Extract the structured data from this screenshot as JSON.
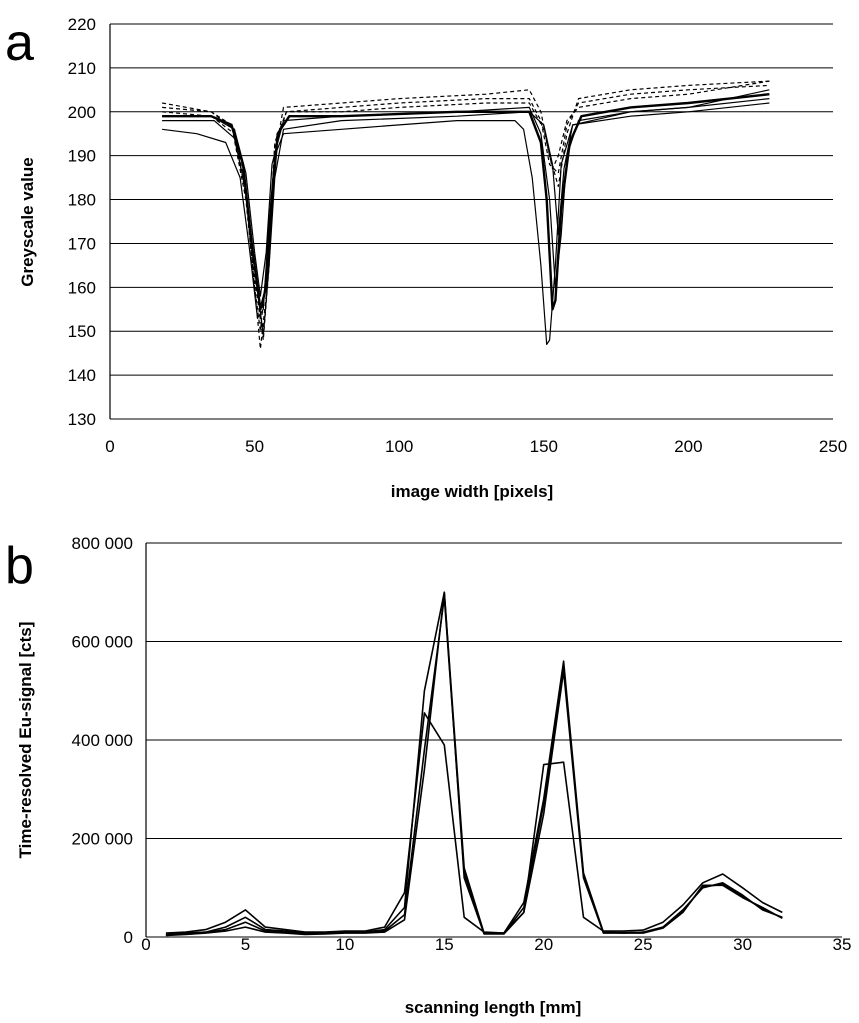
{
  "chart_data": [
    {
      "panel": "a",
      "type": "line",
      "title": "",
      "xlabel": "image width [pixels]",
      "ylabel": "Greyscale value",
      "xlim": [
        0,
        250
      ],
      "ylim": [
        130,
        220
      ],
      "xticks": [
        0,
        50,
        100,
        150,
        200,
        250
      ],
      "yticks": [
        130,
        140,
        150,
        160,
        170,
        180,
        190,
        200,
        210,
        220
      ],
      "xtick_labels": [
        "0",
        "50",
        "100",
        "150",
        "200",
        "250"
      ],
      "ytick_labels": [
        "130",
        "140",
        "150",
        "160",
        "170",
        "180",
        "190",
        "200",
        "210",
        "220"
      ],
      "grid": "horizontal",
      "legend": "none",
      "series": [
        {
          "style": "solid",
          "width": 1.2,
          "points": [
            [
              18,
              196
            ],
            [
              30,
              195
            ],
            [
              40,
              193
            ],
            [
              45,
              185
            ],
            [
              48,
              170
            ],
            [
              51,
              153
            ],
            [
              53,
              155
            ],
            [
              55,
              175
            ],
            [
              57,
              190
            ],
            [
              60,
              195
            ],
            [
              80,
              196
            ],
            [
              100,
              197
            ],
            [
              120,
              198
            ],
            [
              140,
              198
            ],
            [
              143,
              196
            ],
            [
              146,
              185
            ],
            [
              149,
              165
            ],
            [
              151,
              147
            ],
            [
              152,
              148
            ],
            [
              154,
              165
            ],
            [
              156,
              188
            ],
            [
              160,
              197
            ],
            [
              180,
              199
            ],
            [
              200,
              200
            ],
            [
              228,
              202
            ]
          ]
        },
        {
          "style": "solid",
          "width": 2.4,
          "points": [
            [
              18,
              199
            ],
            [
              35,
              199
            ],
            [
              42,
              197
            ],
            [
              46,
              188
            ],
            [
              49,
              170
            ],
            [
              52,
              155
            ],
            [
              54,
              160
            ],
            [
              56,
              180
            ],
            [
              58,
              195
            ],
            [
              62,
              199
            ],
            [
              80,
              199
            ],
            [
              120,
              200
            ],
            [
              145,
              200
            ],
            [
              149,
              193
            ],
            [
              151,
              180
            ],
            [
              153,
              155
            ],
            [
              154,
              157
            ],
            [
              156,
              178
            ],
            [
              159,
              193
            ],
            [
              163,
              199
            ],
            [
              180,
              201
            ],
            [
              200,
              202
            ],
            [
              228,
              204
            ]
          ]
        },
        {
          "style": "solid",
          "width": 1.2,
          "points": [
            [
              18,
              199
            ],
            [
              35,
              199
            ],
            [
              43,
              196
            ],
            [
              47,
              186
            ],
            [
              50,
              168
            ],
            [
              52,
              158
            ],
            [
              54,
              168
            ],
            [
              56,
              188
            ],
            [
              60,
              198
            ],
            [
              80,
              199
            ],
            [
              120,
              200
            ],
            [
              145,
              201
            ],
            [
              149,
              195
            ],
            [
              152,
              180
            ],
            [
              154,
              160
            ],
            [
              156,
              172
            ],
            [
              158,
              190
            ],
            [
              162,
              198
            ],
            [
              180,
              200
            ],
            [
              200,
              201
            ],
            [
              228,
              203
            ]
          ]
        },
        {
          "style": "solid",
          "width": 1.2,
          "points": [
            [
              18,
              198
            ],
            [
              36,
              198
            ],
            [
              43,
              194
            ],
            [
              47,
              182
            ],
            [
              50,
              165
            ],
            [
              53,
              149
            ],
            [
              55,
              165
            ],
            [
              57,
              185
            ],
            [
              60,
              196
            ],
            [
              80,
              198
            ],
            [
              120,
              199
            ],
            [
              145,
              200
            ],
            [
              150,
              197
            ],
            [
              153,
              188
            ],
            [
              155,
              172
            ],
            [
              157,
              187
            ],
            [
              160,
              197
            ],
            [
              180,
              200
            ],
            [
              200,
              201
            ],
            [
              228,
              205
            ]
          ]
        },
        {
          "style": "dashed",
          "width": 1.2,
          "points": [
            [
              18,
              202
            ],
            [
              35,
              200
            ],
            [
              42,
              197
            ],
            [
              47,
              180
            ],
            [
              50,
              160
            ],
            [
              52,
              146
            ],
            [
              54,
              158
            ],
            [
              57,
              190
            ],
            [
              60,
              201
            ],
            [
              80,
              202
            ],
            [
              100,
              203
            ],
            [
              130,
              204
            ],
            [
              145,
              205
            ],
            [
              149,
              200
            ],
            [
              152,
              190
            ],
            [
              155,
              183
            ],
            [
              158,
              195
            ],
            [
              162,
              203
            ],
            [
              180,
              205
            ],
            [
              200,
              206
            ],
            [
              228,
              207
            ]
          ]
        },
        {
          "style": "dashed",
          "width": 1.2,
          "points": [
            [
              18,
              201
            ],
            [
              35,
              200
            ],
            [
              43,
              196
            ],
            [
              47,
              182
            ],
            [
              50,
              162
            ],
            [
              53,
              148
            ],
            [
              55,
              165
            ],
            [
              57,
              192
            ],
            [
              61,
              200
            ],
            [
              80,
              201
            ],
            [
              100,
              202
            ],
            [
              130,
              203
            ],
            [
              145,
              203
            ],
            [
              149,
              198
            ],
            [
              152,
              188
            ],
            [
              155,
              186
            ],
            [
              158,
              197
            ],
            [
              162,
              202
            ],
            [
              180,
              204
            ],
            [
              200,
              205
            ],
            [
              228,
              206
            ]
          ]
        },
        {
          "style": "dashed",
          "width": 1.2,
          "points": [
            [
              18,
              200
            ],
            [
              35,
              199
            ],
            [
              43,
              195
            ],
            [
              47,
              181
            ],
            [
              50,
              160
            ],
            [
              52,
              150
            ],
            [
              55,
              170
            ],
            [
              57,
              193
            ],
            [
              61,
              200
            ],
            [
              80,
              200
            ],
            [
              100,
              201
            ],
            [
              130,
              202
            ],
            [
              145,
              202
            ],
            [
              150,
              196
            ],
            [
              153,
              187
            ],
            [
              155,
              190
            ],
            [
              158,
              198
            ],
            [
              162,
              201
            ],
            [
              180,
              203
            ],
            [
              200,
              204
            ],
            [
              228,
              207
            ]
          ]
        }
      ]
    },
    {
      "panel": "b",
      "type": "line",
      "title": "",
      "xlabel": "scanning length [mm]",
      "ylabel": "Time-resolved Eu-signal [cts]",
      "xlim": [
        0,
        35
      ],
      "ylim": [
        0,
        800000
      ],
      "xticks": [
        0,
        5,
        10,
        15,
        20,
        25,
        30,
        35
      ],
      "yticks": [
        0,
        200000,
        400000,
        600000,
        800000
      ],
      "xtick_labels": [
        "0",
        "5",
        "10",
        "15",
        "20",
        "25",
        "30",
        "35"
      ],
      "ytick_labels": [
        "0",
        "200 000",
        "400 000",
        "600 000",
        "800 000"
      ],
      "grid": "horizontal",
      "legend": "none",
      "x": [
        1,
        2,
        3,
        4,
        5,
        6,
        7,
        8,
        9,
        10,
        11,
        12,
        13,
        14,
        15,
        16,
        17,
        18,
        19,
        20,
        21,
        22,
        23,
        24,
        25,
        26,
        27,
        28,
        29,
        30,
        31,
        32
      ],
      "series": [
        {
          "values": [
            8000,
            10000,
            15000,
            30000,
            55000,
            20000,
            15000,
            10000,
            10000,
            12000,
            12000,
            20000,
            90000,
            455000,
            390000,
            40000,
            10000,
            8000,
            50000,
            350000,
            355000,
            40000,
            12000,
            12000,
            14000,
            30000,
            65000,
            110000,
            128000,
            100000,
            70000,
            50000
          ]
        },
        {
          "values": [
            5000,
            8000,
            10000,
            20000,
            40000,
            15000,
            12000,
            8000,
            8000,
            10000,
            10000,
            15000,
            60000,
            500000,
            700000,
            140000,
            8000,
            8000,
            70000,
            280000,
            560000,
            130000,
            10000,
            8000,
            10000,
            20000,
            55000,
            100000,
            110000,
            85000,
            55000,
            40000
          ]
        },
        {
          "values": [
            3000,
            5000,
            8000,
            12000,
            20000,
            10000,
            8000,
            5000,
            6000,
            8000,
            8000,
            10000,
            35000,
            340000,
            700000,
            120000,
            6000,
            6000,
            50000,
            250000,
            540000,
            120000,
            8000,
            8000,
            8000,
            18000,
            50000,
            105000,
            105000,
            80000,
            60000,
            38000
          ]
        },
        {
          "values": [
            4000,
            6000,
            9000,
            15000,
            30000,
            12000,
            10000,
            6000,
            7000,
            9000,
            9000,
            12000,
            45000,
            380000,
            690000,
            130000,
            7000,
            7000,
            60000,
            270000,
            550000,
            125000,
            9000,
            9000,
            9000,
            20000,
            52000,
            102000,
            107000,
            82000,
            57000,
            39000
          ]
        }
      ]
    }
  ]
}
